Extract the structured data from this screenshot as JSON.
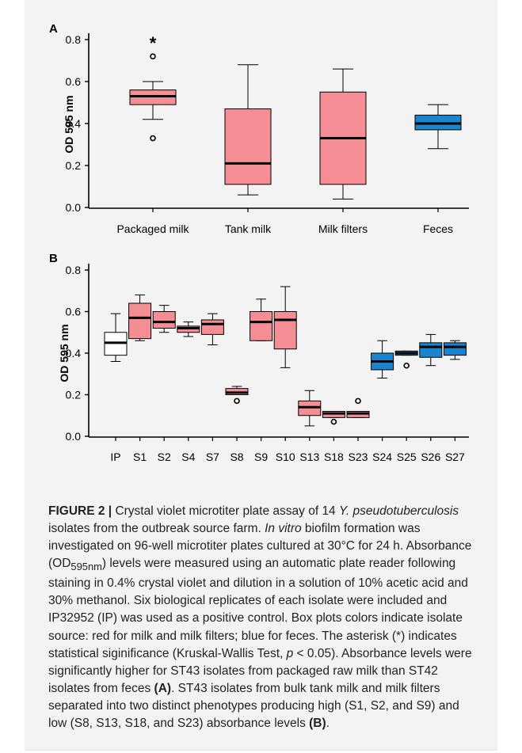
{
  "colors": {
    "milk": "#f58e94",
    "feces": "#1a85cc",
    "control": "#ffffff",
    "frame_bg": "#f3f3f3"
  },
  "chart_data": [
    {
      "panel": "A",
      "type": "box",
      "ylabel": "OD 595 nm",
      "ylim": [
        0.0,
        0.8
      ],
      "yticks": [
        "0.0",
        "0.2",
        "0.4",
        "0.6",
        "0.8"
      ],
      "categories": [
        "Packaged milk",
        "Tank milk",
        "Milk filters",
        "Feces"
      ],
      "boxes": [
        {
          "category": "Packaged milk",
          "whisker_low": 0.42,
          "q1": 0.49,
          "median": 0.53,
          "q3": 0.56,
          "whisker_high": 0.6,
          "outliers": [
            0.33,
            0.72
          ],
          "significance": "*",
          "group": "milk"
        },
        {
          "category": "Tank milk",
          "whisker_low": 0.06,
          "q1": 0.11,
          "median": 0.21,
          "q3": 0.47,
          "whisker_high": 0.68,
          "outliers": [],
          "group": "milk"
        },
        {
          "category": "Milk filters",
          "whisker_low": 0.04,
          "q1": 0.11,
          "median": 0.33,
          "q3": 0.55,
          "whisker_high": 0.66,
          "outliers": [],
          "group": "milk"
        },
        {
          "category": "Feces",
          "whisker_low": 0.28,
          "q1": 0.37,
          "median": 0.4,
          "q3": 0.44,
          "whisker_high": 0.49,
          "outliers": [],
          "group": "feces"
        }
      ]
    },
    {
      "panel": "B",
      "type": "box",
      "ylabel": "OD 595 nm",
      "ylim": [
        0.0,
        0.8
      ],
      "yticks": [
        "0.0",
        "0.2",
        "0.4",
        "0.6",
        "0.8"
      ],
      "categories": [
        "IP",
        "S1",
        "S2",
        "S4",
        "S7",
        "S8",
        "S9",
        "S10",
        "S13",
        "S18",
        "S23",
        "S24",
        "S25",
        "S26",
        "S27"
      ],
      "boxes": [
        {
          "category": "IP",
          "whisker_low": 0.36,
          "q1": 0.39,
          "median": 0.45,
          "q3": 0.5,
          "whisker_high": 0.59,
          "outliers": [],
          "group": "control"
        },
        {
          "category": "S1",
          "whisker_low": 0.46,
          "q1": 0.47,
          "median": 0.57,
          "q3": 0.64,
          "whisker_high": 0.68,
          "outliers": [],
          "group": "milk"
        },
        {
          "category": "S2",
          "whisker_low": 0.5,
          "q1": 0.52,
          "median": 0.55,
          "q3": 0.6,
          "whisker_high": 0.63,
          "outliers": [],
          "group": "milk"
        },
        {
          "category": "S4",
          "whisker_low": 0.48,
          "q1": 0.5,
          "median": 0.52,
          "q3": 0.53,
          "whisker_high": 0.55,
          "outliers": [],
          "group": "milk"
        },
        {
          "category": "S7",
          "whisker_low": 0.44,
          "q1": 0.49,
          "median": 0.54,
          "q3": 0.56,
          "whisker_high": 0.59,
          "outliers": [],
          "group": "milk"
        },
        {
          "category": "S8",
          "whisker_low": 0.2,
          "q1": 0.2,
          "median": 0.21,
          "q3": 0.23,
          "whisker_high": 0.24,
          "outliers": [
            0.17
          ],
          "group": "milk"
        },
        {
          "category": "S9",
          "whisker_low": 0.46,
          "q1": 0.46,
          "median": 0.55,
          "q3": 0.6,
          "whisker_high": 0.66,
          "outliers": [],
          "group": "milk"
        },
        {
          "category": "S10",
          "whisker_low": 0.33,
          "q1": 0.42,
          "median": 0.56,
          "q3": 0.6,
          "whisker_high": 0.72,
          "outliers": [],
          "group": "milk"
        },
        {
          "category": "S13",
          "whisker_low": 0.05,
          "q1": 0.1,
          "median": 0.14,
          "q3": 0.17,
          "whisker_high": 0.22,
          "outliers": [],
          "group": "milk"
        },
        {
          "category": "S18",
          "whisker_low": 0.09,
          "q1": 0.09,
          "median": 0.11,
          "q3": 0.12,
          "whisker_high": 0.12,
          "outliers": [
            0.07
          ],
          "group": "milk"
        },
        {
          "category": "S23",
          "whisker_low": 0.09,
          "q1": 0.09,
          "median": 0.11,
          "q3": 0.12,
          "whisker_high": 0.12,
          "outliers": [
            0.17
          ],
          "group": "milk"
        },
        {
          "category": "S24",
          "whisker_low": 0.28,
          "q1": 0.32,
          "median": 0.36,
          "q3": 0.4,
          "whisker_high": 0.46,
          "outliers": [],
          "group": "feces"
        },
        {
          "category": "S25",
          "whisker_low": 0.39,
          "q1": 0.39,
          "median": 0.4,
          "q3": 0.41,
          "whisker_high": 0.41,
          "outliers": [
            0.34
          ],
          "group": "feces"
        },
        {
          "category": "S26",
          "whisker_low": 0.34,
          "q1": 0.38,
          "median": 0.43,
          "q3": 0.45,
          "whisker_high": 0.49,
          "outliers": [],
          "group": "feces"
        },
        {
          "category": "S27",
          "whisker_low": 0.37,
          "q1": 0.39,
          "median": 0.43,
          "q3": 0.45,
          "whisker_high": 0.46,
          "outliers": [],
          "group": "feces"
        }
      ]
    }
  ],
  "caption": {
    "prefix": "FIGURE 2 | ",
    "t1": "Crystal violet microtiter plate assay of 14 ",
    "species": "Y. pseudotuberculosis",
    "t2": " isolates from the outbreak source farm. ",
    "invitro": "In vitro",
    "t3": " biofilm formation was investigated on 96-well microtiter plates cultured at 30°C for 24 h. Absorbance (OD",
    "sub": "595nm",
    "t4": ") levels were measured using an automatic plate reader following staining in 0.4% crystal violet and dilution in a solution of 10% acetic acid and 30% methanol. Six biological replicates of each isolate were included and IP32952 (IP) was used as a positive control. Box plots colors indicate isolate source: red for milk and milk filters; blue for feces. The asterisk (*) indicates statistical siginificance (Kruskal-Wallis Test, ",
    "p": "p",
    "t5": " < 0.05). Absorbance levels were significantly higher for ST43 isolates from packaged raw milk than ST42 isolates from feces ",
    "refA": "(A)",
    "t6": ". ST43 isolates from bulk tank milk and milk filters separated into two distinct phenotypes producing high (S1, S2, and S9) and low (S8, S13, S18, and S23) absorbance levels ",
    "refB": "(B)",
    "t7": "."
  }
}
